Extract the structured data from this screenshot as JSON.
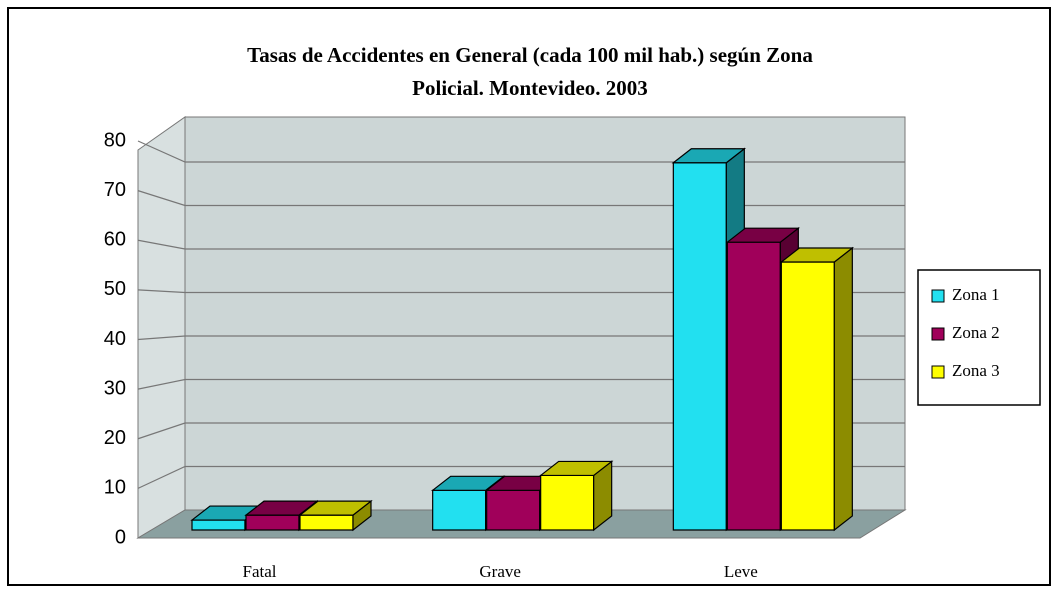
{
  "chart_data": {
    "type": "bar3d",
    "title": [
      "Tasas de Accidentes en General (cada 100 mil hab.)  según Zona",
      "Policial. Montevideo. 2003"
    ],
    "categories": [
      "Fatal",
      "Grave",
      "Leve"
    ],
    "series": [
      {
        "name": "Zona 1",
        "color": "#22e0f0",
        "values": [
          2,
          8,
          74
        ]
      },
      {
        "name": "Zona 2",
        "color": "#a0005a",
        "values": [
          3,
          8,
          58
        ]
      },
      {
        "name": "Zona 3",
        "color": "#ffff00",
        "values": [
          3,
          11,
          54
        ]
      }
    ],
    "ylim": [
      0,
      80
    ],
    "yticks": [
      0,
      10,
      20,
      30,
      40,
      50,
      60,
      70,
      80
    ],
    "grid": true,
    "legend": "right"
  }
}
